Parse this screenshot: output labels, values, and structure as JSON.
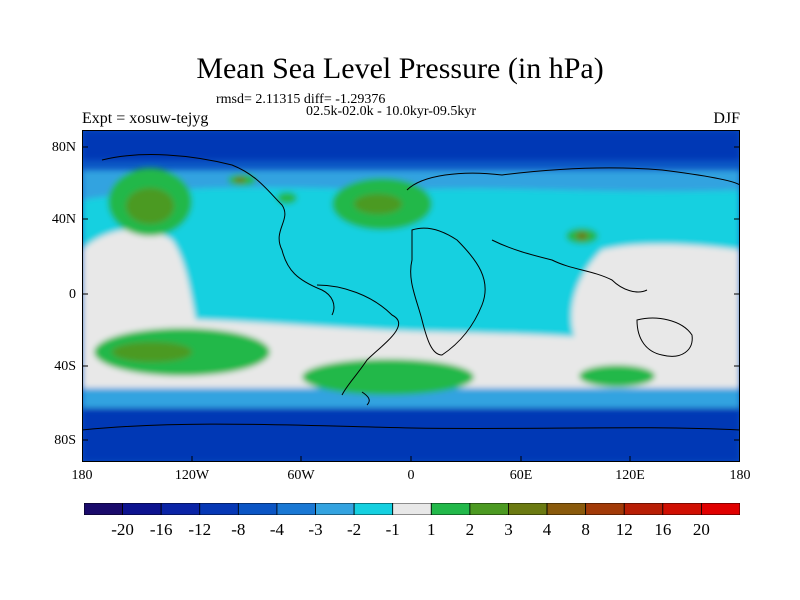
{
  "title": "Mean Sea Level Pressure (in hPa)",
  "stats_line1": "rmsd= 2.11315 diff= -1.29376",
  "stats_line2": "02.5k-02.0k - 10.0kyr-09.5kyr",
  "experiment": "Expt = xosuw-tejyg",
  "season": "DJF",
  "lat_labels": [
    "80N",
    "40N",
    "0",
    "40S",
    "80S"
  ],
  "lon_labels": [
    "180",
    "120W",
    "60W",
    "0",
    "60E",
    "120E",
    "180"
  ],
  "colorbar": {
    "labels": [
      "-20",
      "-16",
      "-12",
      "-8",
      "-4",
      "-3",
      "-2",
      "-1",
      "1",
      "2",
      "3",
      "4",
      "8",
      "12",
      "16",
      "20"
    ],
    "colors": [
      "#1a0a6b",
      "#0d138f",
      "#0a24a6",
      "#0638b5",
      "#0b55c4",
      "#1a78d4",
      "#33a3e0",
      "#15d0e0",
      "#e8e8e8",
      "#22b84a",
      "#4c9a22",
      "#6b7a12",
      "#8a5a0c",
      "#a23a08",
      "#b81e05",
      "#d00f02",
      "#e00000"
    ]
  },
  "colors": {
    "ocean_base": "#0b55c4",
    "neutral": "#e8e8e8",
    "cyan": "#15d0e0",
    "lightblue": "#33a3e0",
    "green": "#22b84a",
    "olive": "#4c9a22",
    "brown": "#6b7a12"
  }
}
